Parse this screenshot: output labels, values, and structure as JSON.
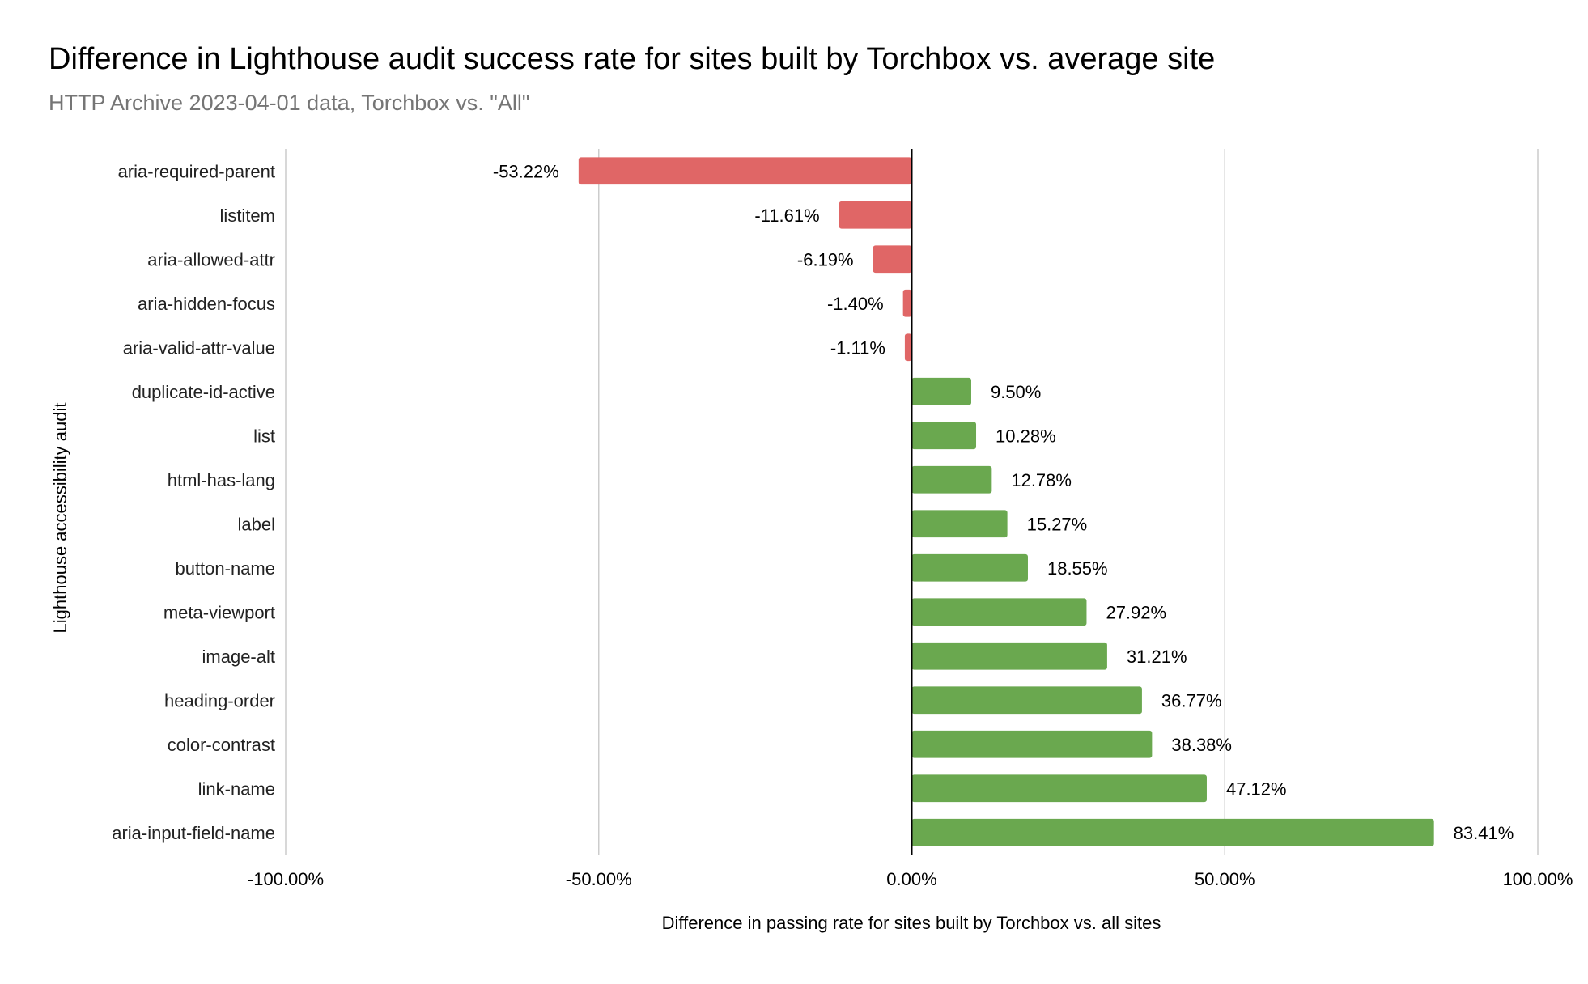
{
  "chart_data": {
    "type": "bar",
    "orientation": "horizontal",
    "title": "Difference in Lighthouse audit success rate for sites built by Torchbox vs. average site",
    "subtitle": "HTTP Archive 2023-04-01 data, Torchbox vs. \"All\"",
    "xlabel": "Difference in passing rate for sites built by Torchbox vs. all sites",
    "ylabel": "Lighthouse accessibility audit",
    "xlim": [
      -100,
      100
    ],
    "x_ticks": [
      -100,
      -50,
      0,
      50,
      100
    ],
    "x_tick_labels": [
      "-100.00%",
      "-50.00%",
      "0.00%",
      "50.00%",
      "100.00%"
    ],
    "grid": "vertical",
    "legend": "none",
    "categories": [
      "aria-required-parent",
      "listitem",
      "aria-allowed-attr",
      "aria-hidden-focus",
      "aria-valid-attr-value",
      "duplicate-id-active",
      "list",
      "html-has-lang",
      "label",
      "button-name",
      "meta-viewport",
      "image-alt",
      "heading-order",
      "color-contrast",
      "link-name",
      "aria-input-field-name"
    ],
    "values": [
      -53.22,
      -11.61,
      -6.19,
      -1.4,
      -1.11,
      9.5,
      10.28,
      12.78,
      15.27,
      18.55,
      27.92,
      31.21,
      36.77,
      38.38,
      47.12,
      83.41
    ],
    "value_labels": [
      "-53.22%",
      "-11.61%",
      "-6.19%",
      "-1.40%",
      "-1.11%",
      "9.50%",
      "10.28%",
      "12.78%",
      "15.27%",
      "18.55%",
      "27.92%",
      "31.21%",
      "36.77%",
      "38.38%",
      "47.12%",
      "83.41%"
    ],
    "colors": {
      "negative": "#e06666",
      "positive": "#6aa84f",
      "grid": "#cccccc",
      "zero_line": "#000000"
    }
  }
}
